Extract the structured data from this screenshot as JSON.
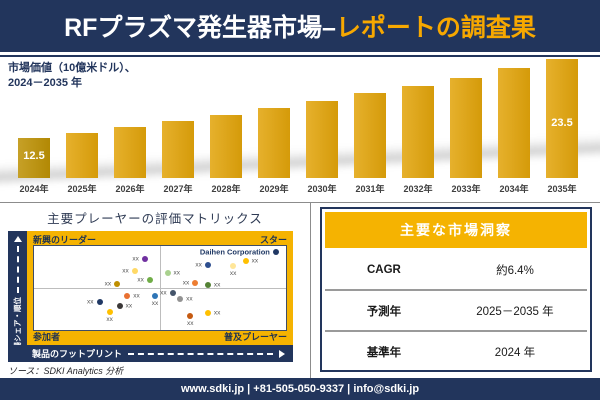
{
  "colors": {
    "navy": "#22355c",
    "gold_band": "#f5b301",
    "bar": "#e2a40a",
    "bar_first": "#bd9104",
    "title_gold": "#f7a800"
  },
  "header": {
    "title_white": "RFプラズマ発生器市場–",
    "title_gold": "レポートの調査果"
  },
  "chart_data": [
    {
      "type": "bar",
      "title": "市場価値（10億米ドル）、2024－2035 年",
      "title_line1": "市場価値（10億米ドル）、",
      "title_line2": "2024－2035 年",
      "categories": [
        "2024年",
        "2025年",
        "2026年",
        "2027年",
        "2028年",
        "2029年",
        "2030年",
        "2031年",
        "2032年",
        "2033年",
        "2034年",
        "2035年"
      ],
      "values": [
        12.5,
        13.2,
        14.0,
        14.9,
        15.7,
        16.7,
        17.6,
        18.7,
        19.8,
        20.9,
        22.2,
        23.5
      ],
      "value_labels": [
        {
          "index": 0,
          "text": "12.5"
        },
        {
          "index": 11,
          "text": "23.5"
        }
      ],
      "xlabel": "",
      "ylabel": "10億米ドル",
      "ylim": [
        0,
        25
      ],
      "grid": false,
      "legend": false
    },
    {
      "type": "scatter",
      "title": "主要プレーヤーの評価マトリックス",
      "x_axis": "製品のフットプリント",
      "y_axis": "市場シェア・順位",
      "quadrants": {
        "top_left": "新興のリーダー",
        "top_right": "スター",
        "bottom_left": "参加者",
        "bottom_right": "普及プレーヤー"
      },
      "highlight_company": "Daihen Corporation",
      "points": [
        {
          "x": 44,
          "y": 15,
          "color": "#7030a0",
          "label": "xx",
          "side": "left"
        },
        {
          "x": 40,
          "y": 30,
          "color": "#ffd966",
          "label": "xx",
          "side": "left"
        },
        {
          "x": 33,
          "y": 45,
          "color": "#bf8f00",
          "label": "xx",
          "side": "left"
        },
        {
          "x": 46,
          "y": 41,
          "color": "#70ad47",
          "label": "xx",
          "side": "left"
        },
        {
          "x": 53,
          "y": 32,
          "color": "#a9d18e",
          "label": "xx",
          "side": "right"
        },
        {
          "x": 69,
          "y": 23,
          "color": "#2e4f8f",
          "label": "xx",
          "side": "left"
        },
        {
          "x": 84,
          "y": 18,
          "color": "#ffc000",
          "label": "xx",
          "side": "right"
        },
        {
          "x": 79,
          "y": 24,
          "color": "#ffe699",
          "label": "xx",
          "side": "below"
        },
        {
          "x": 96,
          "y": 7,
          "color": "#203864",
          "label": "Daihen Corporation",
          "side": "left",
          "company": true
        },
        {
          "x": 64,
          "y": 44,
          "color": "#ed7d31",
          "label": "xx",
          "side": "left"
        },
        {
          "x": 69,
          "y": 46,
          "color": "#548235",
          "label": "xx",
          "side": "right"
        },
        {
          "x": 37,
          "y": 60,
          "color": "#e97132",
          "label": "xx",
          "side": "right"
        },
        {
          "x": 48,
          "y": 60,
          "color": "#2e75b6",
          "label": "xx",
          "side": "below"
        },
        {
          "x": 55,
          "y": 56,
          "color": "#44546a",
          "label": "xx",
          "side": "left"
        },
        {
          "x": 58,
          "y": 63,
          "color": "#929292",
          "label": "xx",
          "side": "right"
        },
        {
          "x": 26,
          "y": 67,
          "color": "#203864",
          "label": "xx",
          "side": "left"
        },
        {
          "x": 34,
          "y": 72,
          "color": "#3b3838",
          "label": "xx",
          "side": "right"
        },
        {
          "x": 30,
          "y": 78,
          "color": "#ffc000",
          "label": "xx",
          "side": "below"
        },
        {
          "x": 62,
          "y": 83,
          "color": "#c55a11",
          "label": "xx",
          "side": "below"
        },
        {
          "x": 69,
          "y": 80,
          "color": "#ffc000",
          "label": "xx",
          "side": "right"
        }
      ]
    }
  ],
  "insights": {
    "title": "主要な市場洞察",
    "rows": [
      {
        "label": "CAGR",
        "value": "約6.4%"
      },
      {
        "label": "予測年",
        "value": "2025－2035 年"
      },
      {
        "label": "基準年",
        "value": "2024 年"
      }
    ]
  },
  "source": "ソース：SDKI Analytics 分析",
  "footer": "www.sdki.jp | +81-505-050-9337 | info@sdki.jp"
}
